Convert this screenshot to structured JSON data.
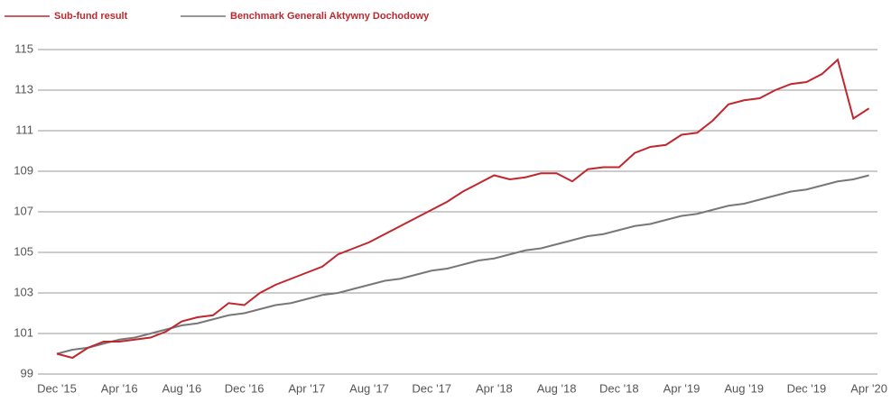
{
  "chart_data": {
    "type": "line",
    "categories": [
      "Dec '15",
      null,
      null,
      null,
      "Apr '16",
      null,
      null,
      null,
      "Aug '16",
      null,
      null,
      null,
      "Dec '16",
      null,
      null,
      null,
      "Apr '17",
      null,
      null,
      null,
      "Aug '17",
      null,
      null,
      null,
      "Dec '17",
      null,
      null,
      null,
      "Apr '18",
      null,
      null,
      null,
      "Aug '18",
      null,
      null,
      null,
      "Dec '18",
      null,
      null,
      null,
      "Apr '19",
      null,
      null,
      null,
      "Aug '19",
      null,
      null,
      null,
      "Dec '19",
      null,
      null,
      null,
      "Apr '20"
    ],
    "series": [
      {
        "name": "Sub-fund result",
        "color": "#c0272d",
        "values": [
          100.0,
          99.8,
          100.3,
          100.6,
          100.6,
          100.7,
          100.8,
          101.1,
          101.6,
          101.8,
          101.9,
          102.5,
          102.4,
          103.0,
          103.4,
          103.7,
          104.0,
          104.3,
          104.9,
          105.2,
          105.5,
          105.9,
          106.3,
          106.7,
          107.1,
          107.5,
          108.0,
          108.4,
          108.8,
          108.6,
          108.7,
          108.9,
          108.9,
          108.5,
          109.1,
          109.2,
          109.2,
          109.9,
          110.2,
          110.3,
          110.8,
          110.9,
          111.5,
          112.3,
          112.5,
          112.6,
          113.0,
          113.3,
          113.4,
          113.8,
          114.5,
          111.6,
          112.1
        ]
      },
      {
        "name": "Benchmark Generali Aktywny Dochodowy",
        "color": "#777777",
        "values": [
          100.0,
          100.2,
          100.3,
          100.5,
          100.7,
          100.8,
          101.0,
          101.2,
          101.4,
          101.5,
          101.7,
          101.9,
          102.0,
          102.2,
          102.4,
          102.5,
          102.7,
          102.9,
          103.0,
          103.2,
          103.4,
          103.6,
          103.7,
          103.9,
          104.1,
          104.2,
          104.4,
          104.6,
          104.7,
          104.9,
          105.1,
          105.2,
          105.4,
          105.6,
          105.8,
          105.9,
          106.1,
          106.3,
          106.4,
          106.6,
          106.8,
          106.9,
          107.1,
          107.3,
          107.4,
          107.6,
          107.8,
          108.0,
          108.1,
          108.3,
          108.5,
          108.6,
          108.8
        ]
      }
    ],
    "ylim": [
      99,
      115.4
    ],
    "yticks": [
      99,
      101,
      103,
      105,
      107,
      109,
      111,
      113,
      115
    ],
    "grid": true
  }
}
